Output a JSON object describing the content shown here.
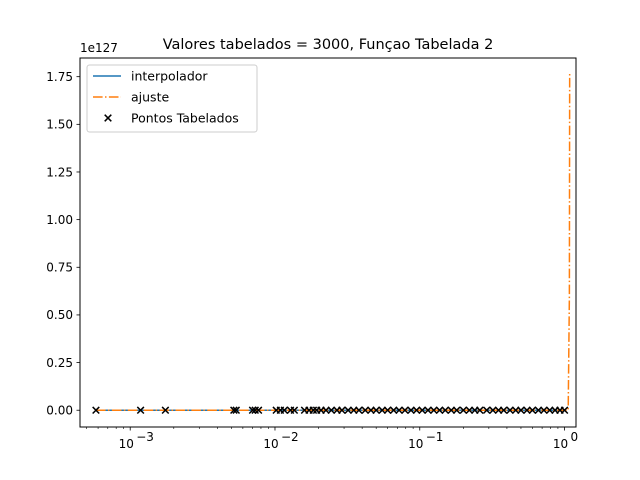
{
  "chart_data": {
    "type": "line",
    "title": "Valores tabelados = 3000, Funçao Tabelada 2",
    "xlabel": "",
    "ylabel": "",
    "xscale": "log",
    "xlim": [
      0.00045,
      1.2
    ],
    "ylim": [
      -0.088,
      1.848
    ],
    "y_offset_text": "1e127",
    "yticks": [
      0.0,
      0.25,
      0.5,
      0.75,
      1.0,
      1.25,
      1.5,
      1.75
    ],
    "ytick_labels": [
      "0.00",
      "0.25",
      "0.50",
      "0.75",
      "1.00",
      "1.25",
      "1.50",
      "1.75"
    ],
    "xticks": [
      0.001,
      0.01,
      0.1,
      1
    ],
    "xtick_labels": [
      {
        "base": "10",
        "exp": "−3"
      },
      {
        "base": "10",
        "exp": "−2"
      },
      {
        "base": "10",
        "exp": "−1"
      },
      {
        "base": "10",
        "exp": "0"
      }
    ],
    "grid": false,
    "legend_position": "upper-left",
    "series": [
      {
        "name": "interpolador",
        "style": "solid",
        "color": "#1f77b4",
        "x": [
          0.00058,
          1.0
        ],
        "y": [
          0.0,
          0.0
        ]
      },
      {
        "name": "ajuste",
        "style": "dashdot",
        "color": "#ff7f0e",
        "x": [
          0.00058,
          0.5,
          1.0,
          1.03,
          1.06,
          1.08,
          1.085
        ],
        "y": [
          0.0,
          0.0,
          0.0,
          0.0,
          0.0,
          0.6,
          1.77
        ]
      },
      {
        "name": "Pontos Tabelados",
        "style": "marker-x",
        "color": "#000000",
        "x": [
          0.00058,
          0.00118,
          0.00175,
          0.0052,
          0.0054,
          0.007,
          0.0073,
          0.0077,
          0.0102,
          0.0109,
          0.0116,
          0.0128,
          0.0136,
          0.016,
          0.0172,
          0.0184,
          0.0194,
          0.0208,
          0.0225,
          0.0245,
          0.0268,
          0.029,
          0.032,
          0.035,
          0.038,
          0.042,
          0.046,
          0.05,
          0.055,
          0.06,
          0.066,
          0.072,
          0.079,
          0.087,
          0.095,
          0.104,
          0.114,
          0.125,
          0.137,
          0.15,
          0.165,
          0.18,
          0.2,
          0.22,
          0.24,
          0.26,
          0.29,
          0.32,
          0.35,
          0.38,
          0.42,
          0.46,
          0.5,
          0.55,
          0.6,
          0.66,
          0.72,
          0.79,
          0.86,
          0.93,
          1.0
        ],
        "y": [
          0.0,
          0.0,
          0.0,
          0.0,
          0.0,
          0.0,
          0.0,
          0.0,
          0.0,
          0.0,
          0.0,
          0.0,
          0.0,
          0.0,
          0.0,
          0.0,
          0.0,
          0.0,
          0.0,
          0.0,
          0.0,
          0.0,
          0.0,
          0.0,
          0.0,
          0.0,
          0.0,
          0.0,
          0.0,
          0.0,
          0.0,
          0.0,
          0.0,
          0.0,
          0.0,
          0.0,
          0.0,
          0.0,
          0.0,
          0.0,
          0.0,
          0.0,
          0.0,
          0.0,
          0.0,
          0.0,
          0.0,
          0.0,
          0.0,
          0.0,
          0.0,
          0.0,
          0.0,
          0.0,
          0.0,
          0.0,
          0.0,
          0.0,
          0.0,
          0.0,
          0.0
        ]
      }
    ]
  }
}
